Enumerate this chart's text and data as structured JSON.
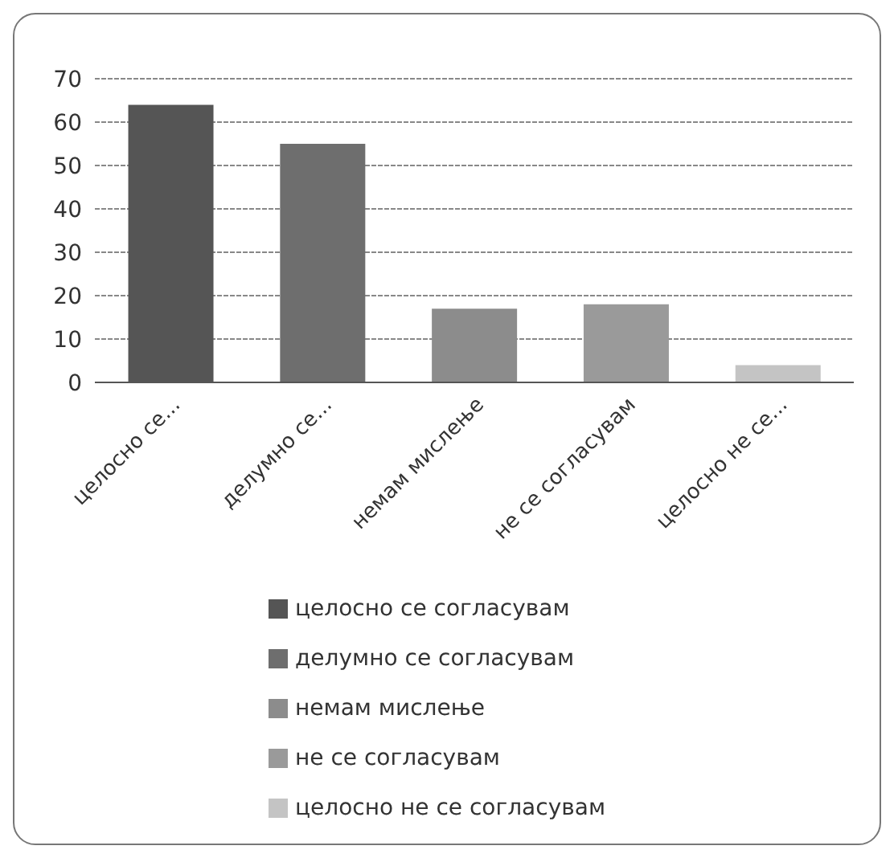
{
  "chart_data": {
    "type": "bar",
    "stacked": true,
    "categories": [
      "целосно се...",
      "делумно се...",
      "немам мислење",
      "не се согласувам",
      "целосно не се..."
    ],
    "series": [
      {
        "name": "целосно се согласувам",
        "color": "#555555",
        "values": [
          64,
          null,
          null,
          null,
          null
        ]
      },
      {
        "name": "делумно се согласувам",
        "color": "#6e6e6e",
        "values": [
          null,
          55,
          null,
          null,
          null
        ]
      },
      {
        "name": "немам мислење",
        "color": "#8c8c8c",
        "values": [
          null,
          null,
          17,
          null,
          null
        ]
      },
      {
        "name": "не се согласувам",
        "color": "#9a9a9a",
        "values": [
          null,
          null,
          null,
          18,
          null
        ]
      },
      {
        "name": "целосно не се согласувам",
        "color": "#c4c4c4",
        "values": [
          null,
          null,
          null,
          null,
          4
        ]
      }
    ],
    "ylim": [
      0,
      70
    ],
    "yticks": [
      0,
      10,
      20,
      30,
      40,
      50,
      60,
      70
    ],
    "grid": "y",
    "legend": "bottom"
  }
}
